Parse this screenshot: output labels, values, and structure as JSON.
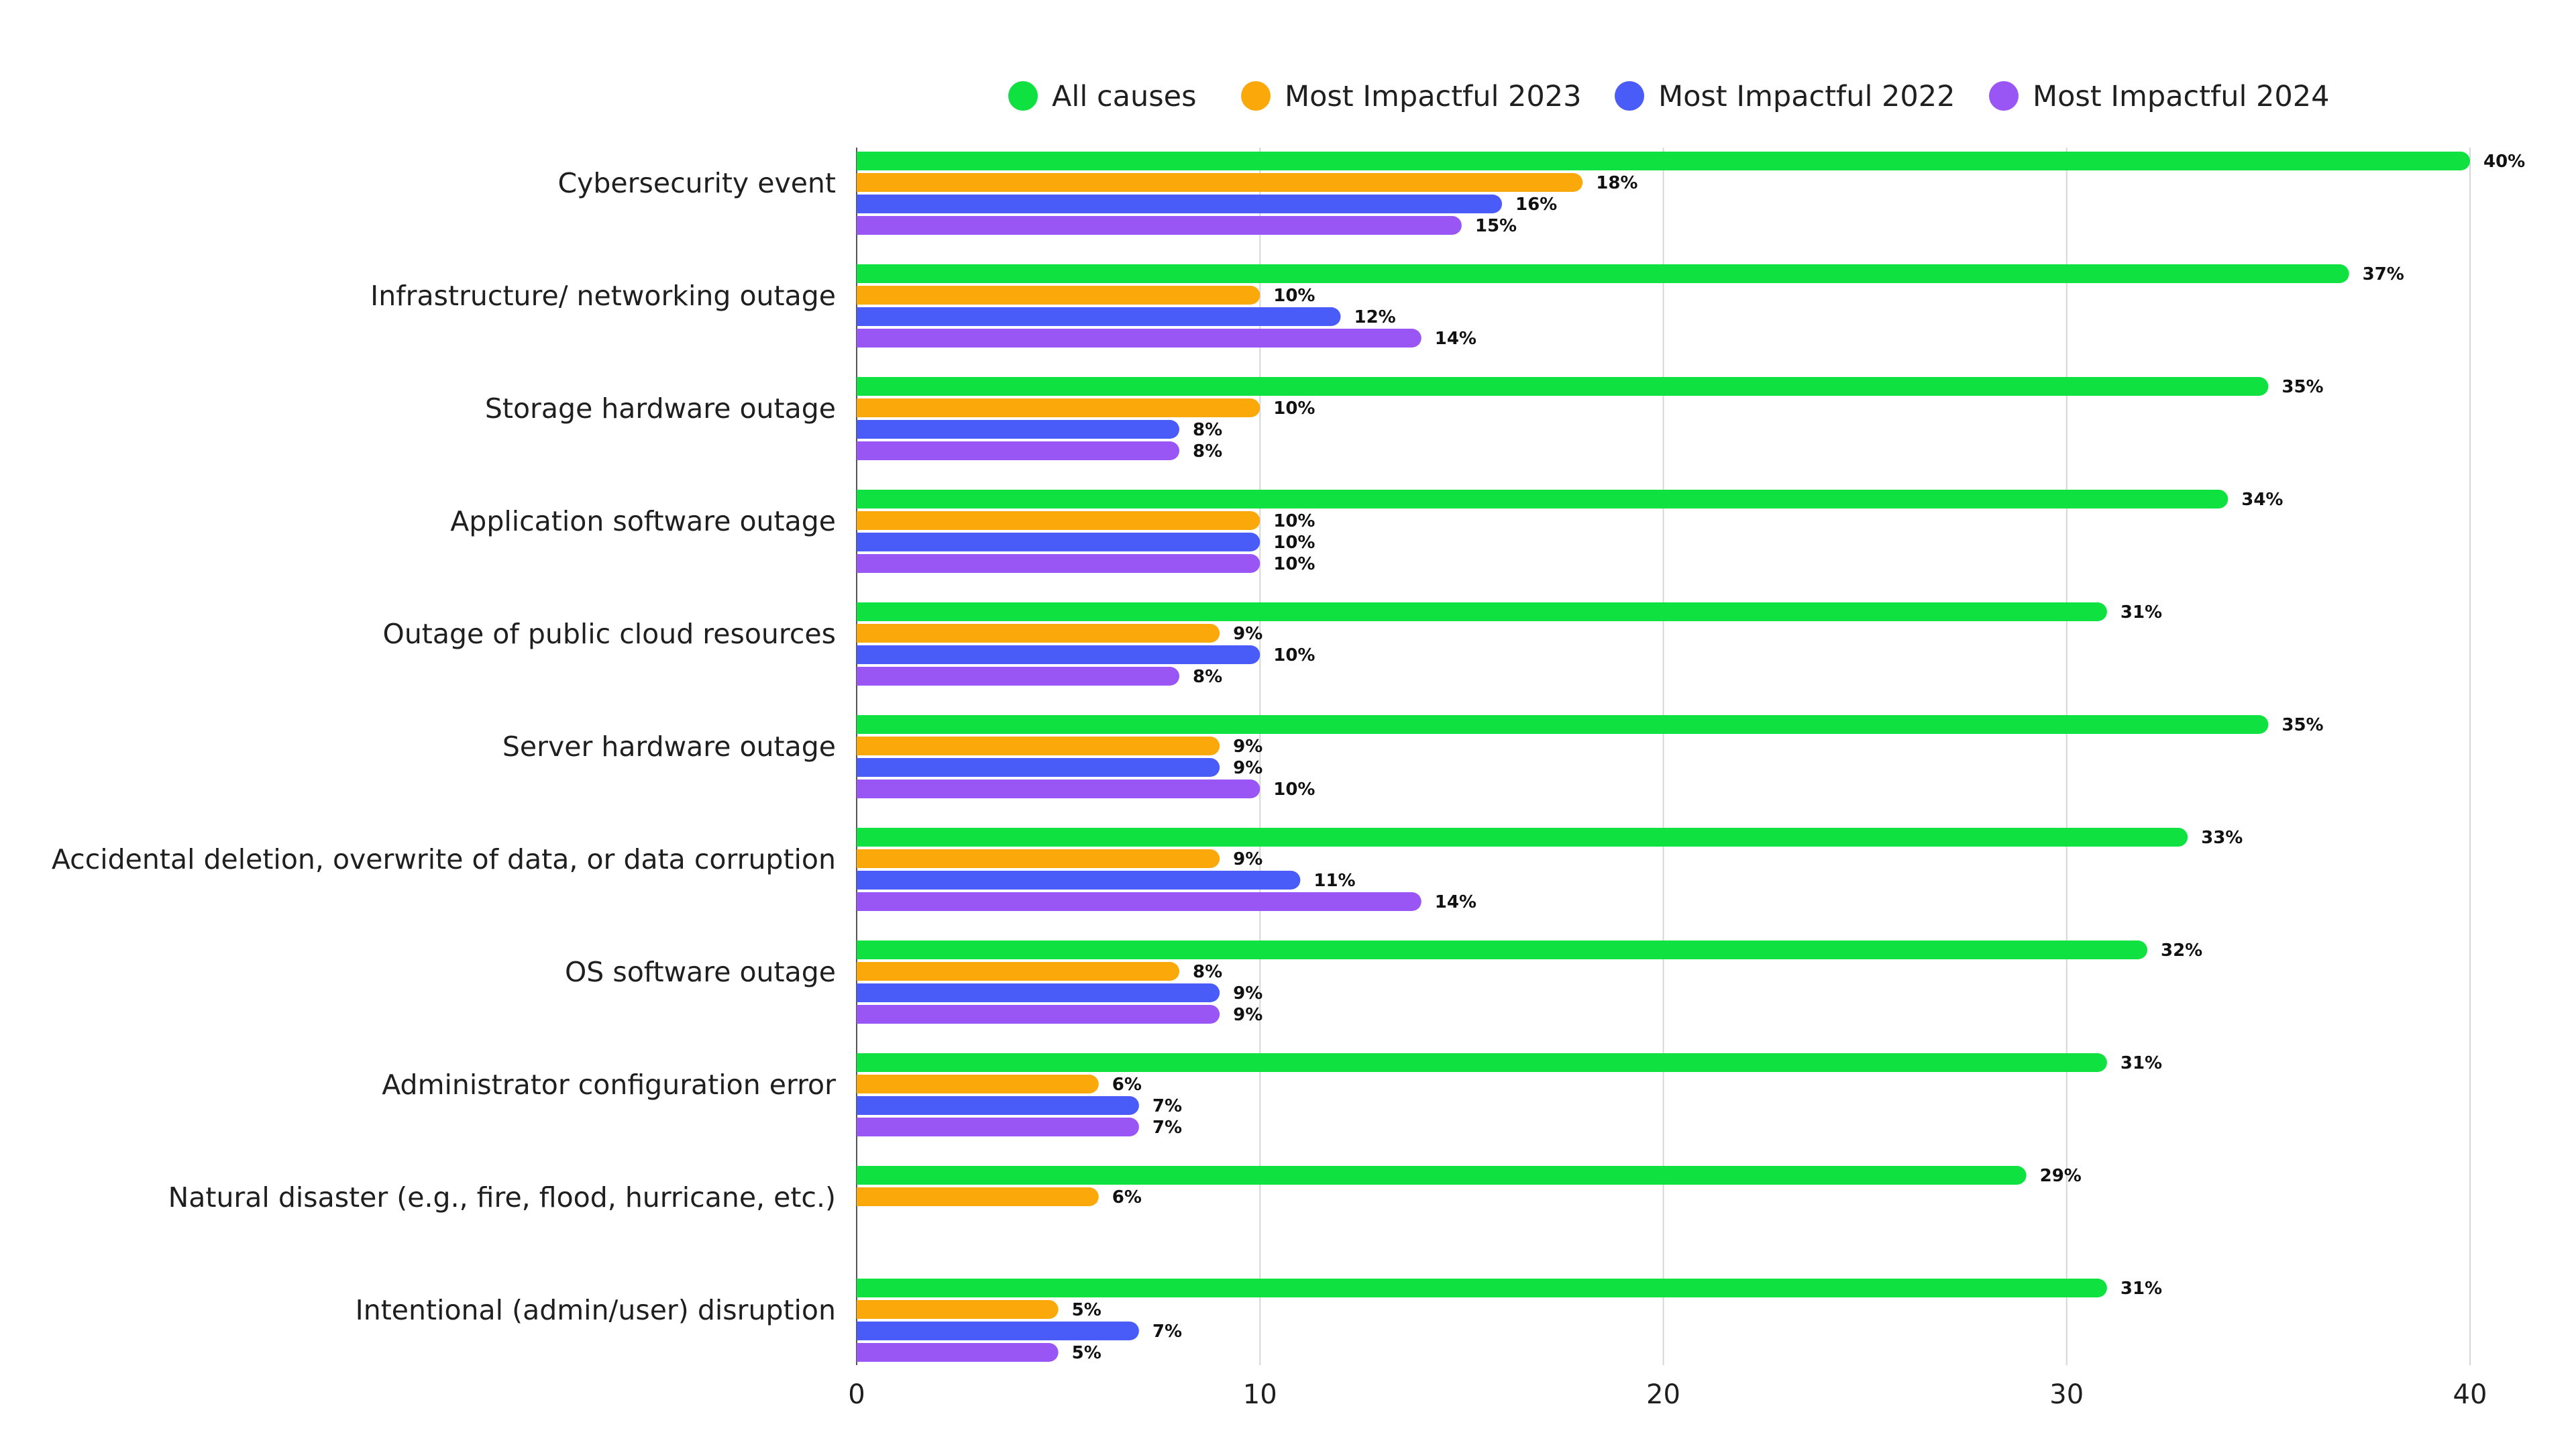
{
  "chart_data": {
    "type": "bar",
    "orientation": "horizontal",
    "title": "",
    "xlabel": "",
    "ylabel": "",
    "xlim": [
      0,
      40
    ],
    "x_ticks": [
      0,
      10,
      20,
      30,
      40
    ],
    "grid": true,
    "legend_position": "top",
    "value_suffix": "%",
    "categories": [
      "Cybersecurity event",
      "Infrastructure/ networking outage",
      "Storage hardware outage",
      "Application software outage",
      "Outage of public cloud resources",
      "Server hardware outage",
      "Accidental deletion, overwrite of data, or data corruption",
      "OS software outage",
      "Administrator configuration error",
      "Natural disaster (e.g., fire, flood, hurricane, etc.)",
      "Intentional (admin/user) disruption"
    ],
    "series": [
      {
        "name": "All causes",
        "color": "#0fe140",
        "values": [
          40,
          37,
          35,
          34,
          31,
          35,
          33,
          32,
          31,
          29,
          31
        ]
      },
      {
        "name": "Most Impactful 2023",
        "color": "#fba90a",
        "values": [
          18,
          10,
          10,
          10,
          9,
          9,
          9,
          8,
          6,
          6,
          5
        ]
      },
      {
        "name": "Most Impactful 2022",
        "color": "#4a5cf7",
        "values": [
          16,
          12,
          8,
          10,
          10,
          9,
          11,
          9,
          7,
          null,
          7
        ]
      },
      {
        "name": "Most Impactful 2024",
        "color": "#9a55f5",
        "values": [
          15,
          14,
          8,
          10,
          8,
          10,
          14,
          9,
          7,
          null,
          5
        ]
      }
    ]
  }
}
